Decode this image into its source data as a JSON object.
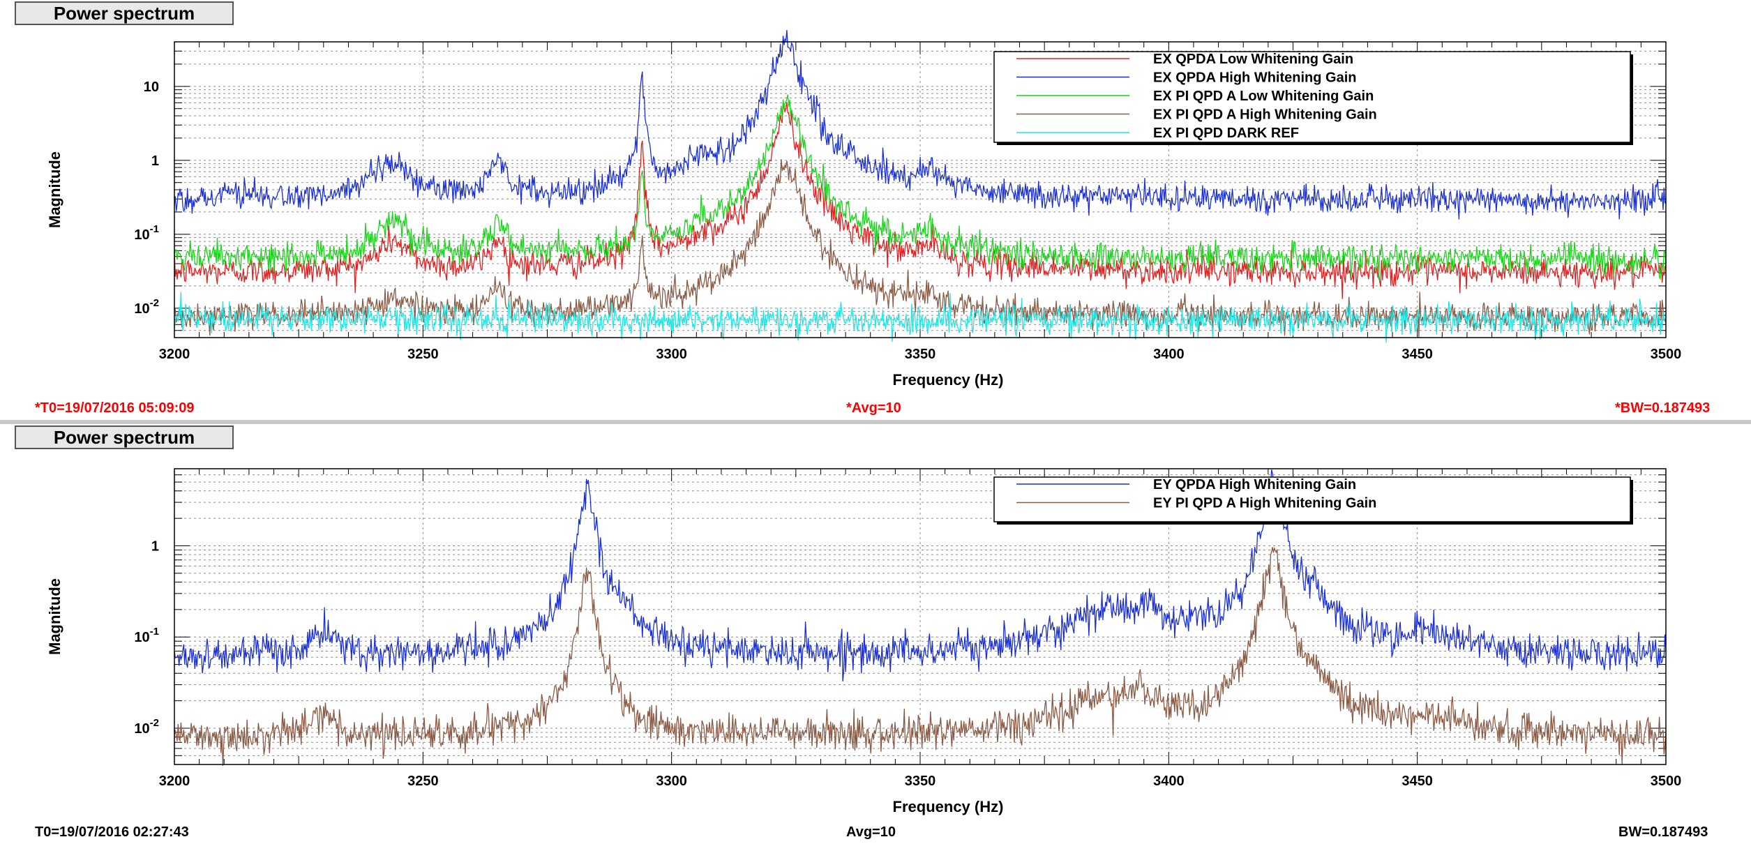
{
  "colors": {
    "red": "#e02020",
    "blue": "#1a2fd6",
    "green": "#19d419",
    "brown": "#8a5a44",
    "cyan": "#1ee6e6",
    "info_red": "#ff0000"
  },
  "panels": [
    {
      "tab_label": "Power spectrum",
      "info": {
        "t0": "*T0=19/07/2016 05:09:09",
        "avg": "*Avg=10",
        "bw": "*BW=0.187493",
        "color": "#ff0000"
      }
    },
    {
      "tab_label": "Power spectrum",
      "info": {
        "t0": "T0=19/07/2016 02:27:43",
        "avg": "Avg=10",
        "bw": "BW=0.187493",
        "color": "#000000"
      }
    }
  ],
  "chart_data": [
    {
      "type": "line",
      "xlabel": "Frequency (Hz)",
      "ylabel": "Magnitude",
      "xlim": [
        3200,
        3500
      ],
      "ylim": [
        0.004,
        40
      ],
      "yscale": "log",
      "x_ticks": [
        "3200",
        "3250",
        "3300",
        "3350",
        "3400",
        "3450",
        "3500"
      ],
      "y_ticks": [
        {
          "value": 0.01,
          "label": "10",
          "sup": "-2"
        },
        {
          "value": 0.1,
          "label": "10",
          "sup": "-1"
        },
        {
          "value": 1,
          "label": "1",
          "sup": ""
        },
        {
          "value": 10,
          "label": "10",
          "sup": ""
        }
      ],
      "grid": true,
      "legend_position": "top-right",
      "series": [
        {
          "name": "EX QPDA Low Whitening Gain",
          "color": "#e02020",
          "baseline": 0.03,
          "peaks": [
            [
              3244,
              0.05,
              3
            ],
            [
              3265,
              0.05,
              1.5
            ],
            [
              3294,
              1.3,
              0.4
            ],
            [
              3306,
              0.045,
              2.5
            ],
            [
              3323,
              4.5,
              1.8
            ],
            [
              3352,
              0.03,
              2
            ]
          ]
        },
        {
          "name": "EX QPDA High Whitening Gain",
          "color": "#1a2fd6",
          "baseline": 0.28,
          "peaks": [
            [
              3244,
              0.6,
              3.5
            ],
            [
              3265,
              0.7,
              1.5
            ],
            [
              3294,
              15,
              0.4
            ],
            [
              3306,
              0.45,
              2.5
            ],
            [
              3323,
              40,
              2
            ],
            [
              3352,
              0.35,
              2.5
            ],
            [
              3212,
              0.08,
              3
            ]
          ]
        },
        {
          "name": "EX PI QPD A Low Whitening Gain",
          "color": "#19d419",
          "baseline": 0.045,
          "peaks": [
            [
              3244,
              0.12,
              3
            ],
            [
              3265,
              0.1,
              1.5
            ],
            [
              3294,
              0.55,
              0.4
            ],
            [
              3306,
              0.06,
              2.5
            ],
            [
              3323,
              6.5,
              1.9
            ],
            [
              3352,
              0.06,
              2
            ]
          ]
        },
        {
          "name": "EX PI QPD A High Whitening Gain",
          "color": "#8a5a44",
          "baseline": 0.0075,
          "peaks": [
            [
              3244,
              0.007,
              3
            ],
            [
              3265,
              0.012,
              1.5
            ],
            [
              3294,
              0.06,
              0.5
            ],
            [
              3323,
              0.9,
              2
            ],
            [
              3352,
              0.006,
              1.5
            ]
          ]
        },
        {
          "name": "EX PI QPD DARK REF",
          "color": "#1ee6e6",
          "baseline": 0.007,
          "peaks": []
        }
      ]
    },
    {
      "type": "line",
      "xlabel": "Frequency (Hz)",
      "ylabel": "Magnitude",
      "xlim": [
        3200,
        3500
      ],
      "ylim": [
        0.004,
        7
      ],
      "yscale": "log",
      "x_ticks": [
        "3200",
        "3250",
        "3300",
        "3350",
        "3400",
        "3450",
        "3500"
      ],
      "y_ticks": [
        {
          "value": 0.01,
          "label": "10",
          "sup": "-2"
        },
        {
          "value": 0.1,
          "label": "10",
          "sup": "-1"
        },
        {
          "value": 1,
          "label": "1",
          "sup": ""
        }
      ],
      "grid": true,
      "legend_position": "top-right",
      "series": [
        {
          "name": "EY QPDA High Whitening Gain",
          "color": "#1a2fd6",
          "baseline": 0.06,
          "peaks": [
            [
              3230,
              0.045,
              3
            ],
            [
              3283,
              4.5,
              1.2
            ],
            [
              3290,
              0.08,
              3
            ],
            [
              3386,
              0.12,
              8
            ],
            [
              3395,
              0.12,
              3
            ],
            [
              3405,
              0.05,
              2
            ],
            [
              3421,
              5.5,
              1.4
            ],
            [
              3428,
              0.2,
              4
            ],
            [
              3453,
              0.04,
              6
            ]
          ]
        },
        {
          "name": "EY PI QPD A High Whitening Gain",
          "color": "#8a5a44",
          "baseline": 0.008,
          "peaks": [
            [
              3230,
              0.006,
              3
            ],
            [
              3283,
              0.45,
              1.2
            ],
            [
              3386,
              0.011,
              8
            ],
            [
              3395,
              0.013,
              3
            ],
            [
              3421,
              0.9,
              1.4
            ],
            [
              3428,
              0.02,
              4
            ],
            [
              3453,
              0.004,
              6
            ]
          ]
        }
      ]
    }
  ]
}
